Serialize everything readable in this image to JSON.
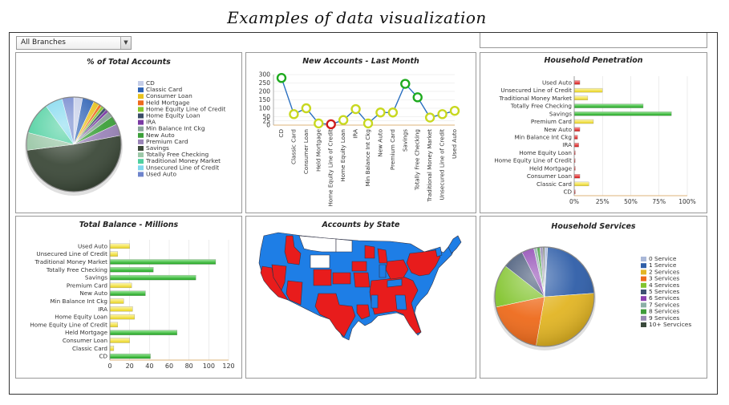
{
  "page": {
    "title": "Examples of data visualization"
  },
  "filter": {
    "branch": "All Branches"
  },
  "chart_data": [
    {
      "id": "accounts",
      "type": "pie",
      "title": "% of Total Accounts",
      "categories": [
        "CD",
        "Classic Card",
        "Consumer Loan",
        "Held Mortgage",
        "Home Equity Line of Credit",
        "Home Equity Loan",
        "IRA",
        "Min Balance Int Ckg",
        "New Auto",
        "Premium Card",
        "Savings",
        "Totally Free Checking",
        "Traditional Money Market",
        "Unsecured Line of Credit",
        "Used Auto"
      ],
      "colors": [
        "#c4cde8",
        "#2e62b5",
        "#e8c21e",
        "#ee6a1c",
        "#86c92f",
        "#3a4c66",
        "#7a3aa3",
        "#8aa49a",
        "#3ca03a",
        "#9a84b8",
        "#3d4a3a",
        "#9cc8a8",
        "#4fd0a0",
        "#7fd8ee",
        "#6e84cc"
      ],
      "values": [
        3,
        4,
        2,
        1,
        1,
        1,
        1,
        2,
        3,
        4,
        51,
        6,
        11,
        6,
        4
      ],
      "legend": "right"
    },
    {
      "id": "new_accounts",
      "type": "line",
      "title": "New Accounts - Last Month",
      "categories": [
        "CD",
        "Classic Card",
        "Consumer Loan",
        "Held Mortgage",
        "Home Equity Line of Credit",
        "Home Equity Loan",
        "IRA",
        "Min Balance Int Ckg",
        "New Auto",
        "Premium Card",
        "Savings",
        "Totally Free Checking",
        "Traditional Money Market",
        "Unsecured Line of Credit",
        "Used Auto"
      ],
      "values": [
        280,
        65,
        100,
        10,
        5,
        30,
        95,
        10,
        75,
        75,
        245,
        165,
        45,
        65,
        85
      ],
      "yticks": [
        0,
        25,
        50,
        100,
        150,
        200,
        250,
        300
      ],
      "ylim": [
        0,
        300
      ],
      "red_points": [
        4
      ]
    },
    {
      "id": "penetration",
      "type": "bar",
      "title": "Household Penetration",
      "orientation": "horizontal",
      "categories": [
        "Used Auto",
        "Unsecured Line of Credit",
        "Traditional Money Market",
        "Totally Free Checking",
        "Savings",
        "Premium Card",
        "New Auto",
        "Min Balance Int Ckg",
        "IRA",
        "Home Equity Loan",
        "Home Equity Line of Credit",
        "Held Mortgage",
        "Consumer Loan",
        "Classic Card",
        "CD"
      ],
      "values": [
        5,
        25,
        12,
        61,
        86,
        17,
        5,
        3,
        4,
        1,
        0.5,
        1,
        5,
        13,
        1
      ],
      "xlim": [
        0,
        100
      ],
      "xticks": [
        "0%",
        "25%",
        "50%",
        "75%",
        "100%"
      ]
    },
    {
      "id": "balance",
      "type": "bar",
      "title": "Total Balance - Millions",
      "orientation": "horizontal",
      "categories": [
        "Used Auto",
        "Unsecured Line of Credit",
        "Traditional Money Market",
        "Totally Free Checking",
        "Savings",
        "Premium Card",
        "New Auto",
        "Min Balance Int Ckg",
        "IRA",
        "Home Equity Loan",
        "Home Equity Line of Credit",
        "Held Mortgage",
        "Consumer Loan",
        "Classic Card",
        "CD"
      ],
      "values": [
        20,
        8,
        107,
        44,
        87,
        22,
        36,
        14,
        23,
        25,
        8,
        68,
        20,
        4,
        41
      ],
      "xlim": [
        0,
        120
      ],
      "xticks": [
        0,
        20,
        40,
        60,
        80,
        100,
        120
      ]
    },
    {
      "id": "map",
      "type": "map",
      "title": "Accounts by State"
    },
    {
      "id": "services",
      "type": "pie",
      "title": "Household Services",
      "categories": [
        "0 Service",
        "1 Service",
        "2 Services",
        "3 Services",
        "4 Services",
        "5 Services",
        "6 Services",
        "7 Services",
        "8 Services",
        "9 Services",
        "10+ Servcices"
      ],
      "colors": [
        "#aab8d8",
        "#2f5ea8",
        "#e2b524",
        "#ee6b1c",
        "#82c42e",
        "#3e5172",
        "#8a3fb0",
        "#8bb0a6",
        "#3f9c3a",
        "#958ab0",
        "#3a4a3c"
      ],
      "values": [
        1,
        23,
        29,
        19,
        14,
        7,
        4,
        1,
        1,
        1,
        0.5
      ],
      "legend": "right"
    }
  ]
}
